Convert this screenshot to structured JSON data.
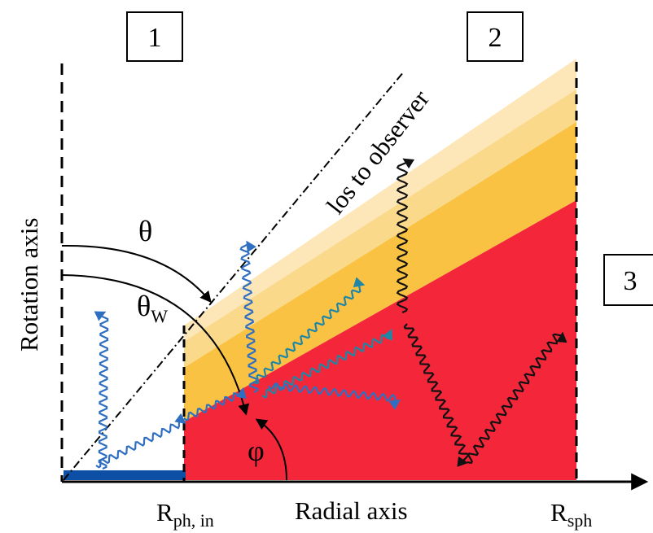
{
  "boxes": [
    {
      "label": "1"
    },
    {
      "label": "2"
    },
    {
      "label": "3"
    }
  ],
  "labels": {
    "los": "los to observer",
    "rotation_axis": "Rotation axis",
    "radial_axis": "Radial axis",
    "theta": "θ",
    "theta_w_main": "θ",
    "theta_w_sub": "W",
    "phi": "φ",
    "r_ph_in_main": "R",
    "r_ph_in_sub": "ph, in",
    "r_sph_main": "R",
    "r_sph_sub": "sph"
  },
  "colors": {
    "red_region": "#f4273a",
    "orange_band": "#f9c243",
    "light_band": "#fbd98a",
    "pale_band": "#fde7b8",
    "photon_blue": "#2f6fc1",
    "base_blue": "#0d4fa5",
    "teal_photon": "#1f86a6"
  }
}
